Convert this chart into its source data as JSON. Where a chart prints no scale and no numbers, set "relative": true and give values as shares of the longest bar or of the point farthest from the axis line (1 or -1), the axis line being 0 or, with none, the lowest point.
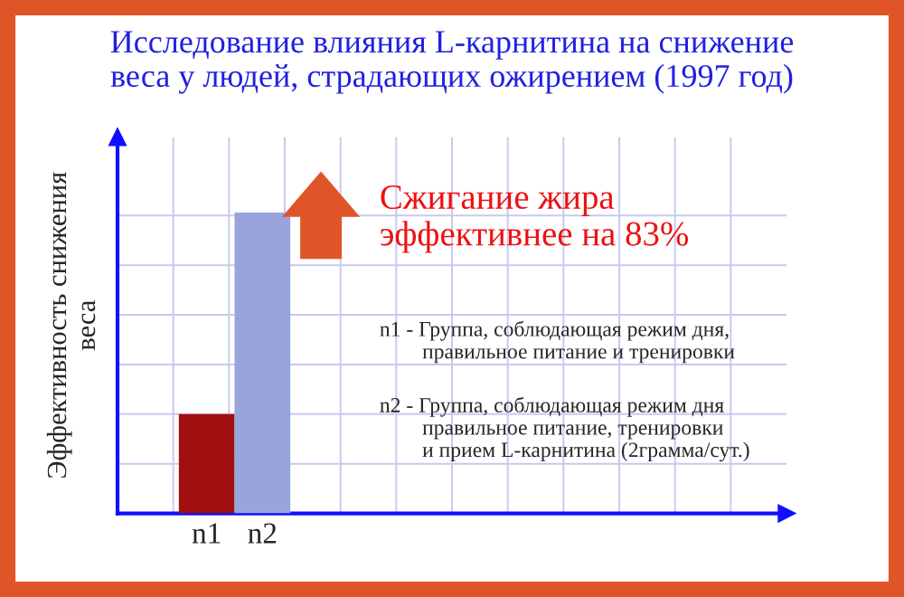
{
  "chart_data": {
    "type": "bar",
    "title": "Исследование влияния L-карнитина на снижение\nвеса у людей, страдающих ожирением (1997 год)",
    "ylabel": "Эффективность снижения\nвеса",
    "categories": [
      "n1",
      "n2"
    ],
    "values": [
      0.33,
      1
    ],
    "colors": [
      "#a01010",
      "#98a4dc"
    ],
    "relative": true,
    "grid": true,
    "annotations": [
      "Сжигание жира\nэффективнее на 83%",
      "n1 - Группа, соблюдающая режим дня,\n        правильное питание и тренировки",
      "n2 - Группа, соблюдающая режим дня\n        правильное питание, тренировки\n        и прием L-карнитина (2грамма/сут.)"
    ]
  }
}
